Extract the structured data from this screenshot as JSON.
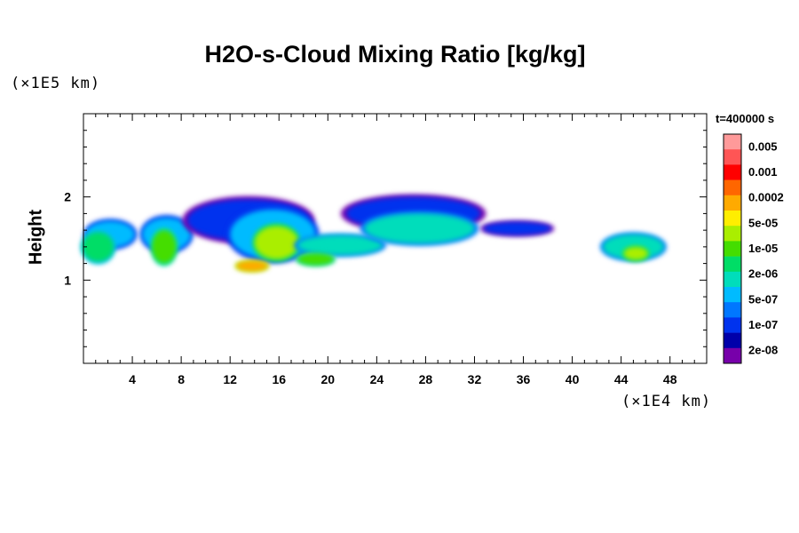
{
  "chart_data": {
    "type": "heatmap",
    "title": "H2O-s-Cloud Mixing Ratio [kg/kg]",
    "ylabel": "Height",
    "x_unit": "(×1E4 km)",
    "y_unit": "(×1E5 km)",
    "time": "t=400000 s",
    "xlim": [
      0,
      51
    ],
    "ylim": [
      0,
      3
    ],
    "x_ticks": [
      "4",
      "8",
      "12",
      "16",
      "20",
      "24",
      "28",
      "32",
      "36",
      "40",
      "44",
      "48"
    ],
    "x_tick_values": [
      4,
      8,
      12,
      16,
      20,
      24,
      28,
      32,
      36,
      40,
      44,
      48
    ],
    "y_ticks": [
      "1",
      "2"
    ],
    "y_tick_values": [
      1,
      2
    ],
    "colorbar": {
      "colors": [
        "#ff9a9a",
        "#ff5555",
        "#ff0000",
        "#ff6600",
        "#ffaa00",
        "#ffee00",
        "#aaee00",
        "#44dd00",
        "#00dd66",
        "#00ddbb",
        "#00bbff",
        "#0077ff",
        "#0033ee",
        "#0000aa",
        "#7700aa"
      ],
      "labels": [
        "0.005",
        "0.001",
        "0.0002",
        "5e-05",
        "1e-05",
        "2e-06",
        "5e-07",
        "1e-07",
        "2e-08"
      ]
    },
    "levels_note_colors_by_rank": true,
    "cloud_blobs": [
      {
        "x": 2.2,
        "y": 1.55,
        "rx": 2.0,
        "ry": 0.16,
        "level": 4
      },
      {
        "x": 1.2,
        "y": 1.4,
        "rx": 1.3,
        "ry": 0.18,
        "level": 6
      },
      {
        "x": 6.8,
        "y": 1.55,
        "rx": 2.0,
        "ry": 0.2,
        "level": 4
      },
      {
        "x": 6.6,
        "y": 1.4,
        "rx": 1.0,
        "ry": 0.2,
        "level": 7
      },
      {
        "x": 13.5,
        "y": 1.72,
        "rx": 5.0,
        "ry": 0.25,
        "level": 2
      },
      {
        "x": 15.5,
        "y": 1.55,
        "rx": 3.5,
        "ry": 0.3,
        "level": 4
      },
      {
        "x": 15.8,
        "y": 1.45,
        "rx": 1.8,
        "ry": 0.2,
        "level": 8
      },
      {
        "x": 21.0,
        "y": 1.42,
        "rx": 3.5,
        "ry": 0.12,
        "level": 5
      },
      {
        "x": 27.0,
        "y": 1.8,
        "rx": 5.5,
        "ry": 0.2,
        "level": 2
      },
      {
        "x": 27.5,
        "y": 1.62,
        "rx": 4.5,
        "ry": 0.18,
        "level": 5
      },
      {
        "x": 35.5,
        "y": 1.62,
        "rx": 2.8,
        "ry": 0.08,
        "level": 2
      },
      {
        "x": 45.0,
        "y": 1.4,
        "rx": 2.5,
        "ry": 0.15,
        "level": 5
      },
      {
        "x": 45.2,
        "y": 1.32,
        "rx": 1.0,
        "ry": 0.08,
        "level": 8
      },
      {
        "x": 13.8,
        "y": 1.17,
        "rx": 1.3,
        "ry": 0.06,
        "level": 10
      },
      {
        "x": 19.0,
        "y": 1.25,
        "rx": 1.5,
        "ry": 0.07,
        "level": 7
      }
    ]
  }
}
